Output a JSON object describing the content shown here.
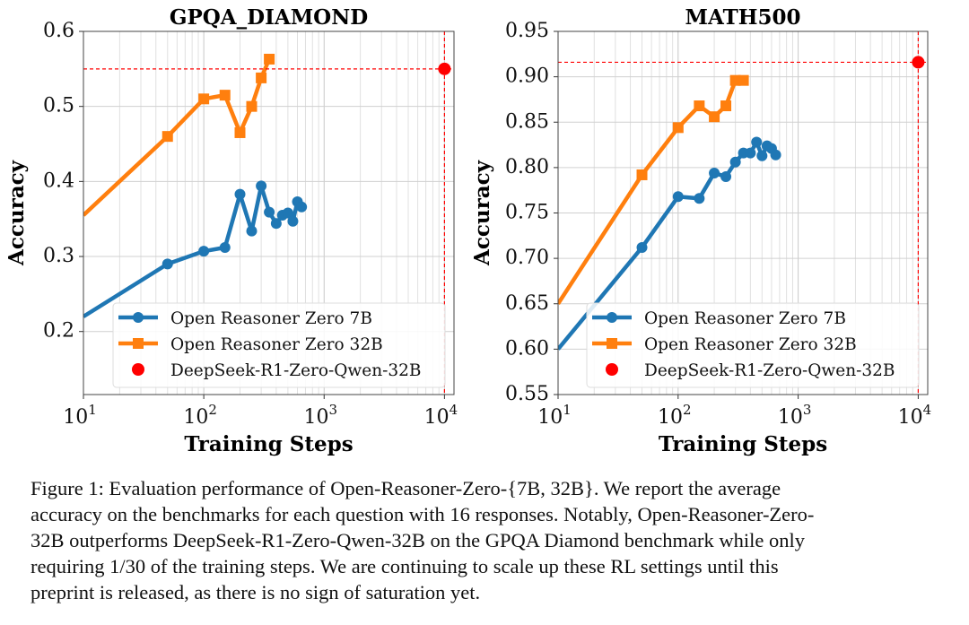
{
  "chart_data": [
    {
      "type": "line",
      "title": "GPQA_DIAMOND",
      "xlabel": "Training Steps",
      "ylabel": "Accuracy",
      "xscale": "log",
      "xlim": [
        10,
        12000
      ],
      "ylim": [
        0.116,
        0.6
      ],
      "xticks": [
        {
          "value": 10,
          "base": "10",
          "exp": "1"
        },
        {
          "value": 100,
          "base": "10",
          "exp": "2"
        },
        {
          "value": 1000,
          "base": "10",
          "exp": "3"
        },
        {
          "value": 10000,
          "base": "10",
          "exp": "4"
        }
      ],
      "yticks": [
        {
          "value": 0.2,
          "label": "0.2"
        },
        {
          "value": 0.3,
          "label": "0.3"
        },
        {
          "value": 0.4,
          "label": "0.4"
        },
        {
          "value": 0.5,
          "label": "0.5"
        },
        {
          "value": 0.6,
          "label": "0.6"
        }
      ],
      "grid": true,
      "legend_position": "bottom-right",
      "series": [
        {
          "name": "Open Reasoner Zero 7B",
          "color": "#1f77b4",
          "marker": "circle",
          "x": [
            10,
            50,
            100,
            150,
            200,
            250,
            300,
            350,
            400,
            450,
            500,
            550,
            600,
            650
          ],
          "y": [
            0.22,
            0.29,
            0.307,
            0.312,
            0.383,
            0.334,
            0.394,
            0.359,
            0.344,
            0.355,
            0.358,
            0.347,
            0.373,
            0.366
          ]
        },
        {
          "name": "Open Reasoner Zero 32B",
          "color": "#ff7f0e",
          "marker": "square",
          "x": [
            10,
            50,
            100,
            150,
            200,
            250,
            300,
            350
          ],
          "y": [
            0.355,
            0.46,
            0.51,
            0.515,
            0.465,
            0.5,
            0.538,
            0.563
          ]
        },
        {
          "name": "DeepSeek-R1-Zero-Qwen-32B",
          "color": "#ff0000",
          "marker": "circle",
          "x": [
            10000
          ],
          "y": [
            0.55
          ],
          "reference_lines": true
        }
      ]
    },
    {
      "type": "line",
      "title": "MATH500",
      "xlabel": "Training Steps",
      "ylabel": "Accuracy",
      "xscale": "log",
      "xlim": [
        10,
        12000
      ],
      "ylim": [
        0.55,
        0.95
      ],
      "xticks": [
        {
          "value": 10,
          "base": "10",
          "exp": "1"
        },
        {
          "value": 100,
          "base": "10",
          "exp": "2"
        },
        {
          "value": 1000,
          "base": "10",
          "exp": "3"
        },
        {
          "value": 10000,
          "base": "10",
          "exp": "4"
        }
      ],
      "yticks": [
        {
          "value": 0.55,
          "label": "0.55"
        },
        {
          "value": 0.6,
          "label": "0.60"
        },
        {
          "value": 0.65,
          "label": "0.65"
        },
        {
          "value": 0.7,
          "label": "0.70"
        },
        {
          "value": 0.75,
          "label": "0.75"
        },
        {
          "value": 0.8,
          "label": "0.80"
        },
        {
          "value": 0.85,
          "label": "0.85"
        },
        {
          "value": 0.9,
          "label": "0.90"
        },
        {
          "value": 0.95,
          "label": "0.95"
        }
      ],
      "grid": true,
      "legend_position": "bottom-right",
      "series": [
        {
          "name": "Open Reasoner Zero 7B",
          "color": "#1f77b4",
          "marker": "circle",
          "x": [
            10,
            50,
            100,
            150,
            200,
            250,
            300,
            350,
            400,
            450,
            500,
            550,
            600,
            650
          ],
          "y": [
            0.6,
            0.712,
            0.768,
            0.766,
            0.794,
            0.79,
            0.806,
            0.816,
            0.816,
            0.828,
            0.813,
            0.824,
            0.821,
            0.814
          ]
        },
        {
          "name": "Open Reasoner Zero 32B",
          "color": "#ff7f0e",
          "marker": "square",
          "x": [
            10,
            50,
            100,
            150,
            200,
            250,
            300,
            350
          ],
          "y": [
            0.65,
            0.792,
            0.844,
            0.868,
            0.856,
            0.868,
            0.896,
            0.896
          ]
        },
        {
          "name": "DeepSeek-R1-Zero-Qwen-32B",
          "color": "#ff0000",
          "marker": "circle",
          "x": [
            10000
          ],
          "y": [
            0.916
          ],
          "reference_lines": true
        }
      ]
    }
  ],
  "caption": {
    "lines": [
      "Figure 1: Evaluation performance of Open-Reasoner-Zero-{7B, 32B}. We report the average",
      "accuracy on the benchmarks for each question with 16 responses. Notably, Open-Reasoner-Zero-",
      "32B outperforms DeepSeek-R1-Zero-Qwen-32B on the GPQA Diamond benchmark while only",
      "requiring 1/30 of the training steps. We are continuing to scale up these RL settings until this",
      "preprint is released, as there is no sign of saturation yet."
    ]
  }
}
